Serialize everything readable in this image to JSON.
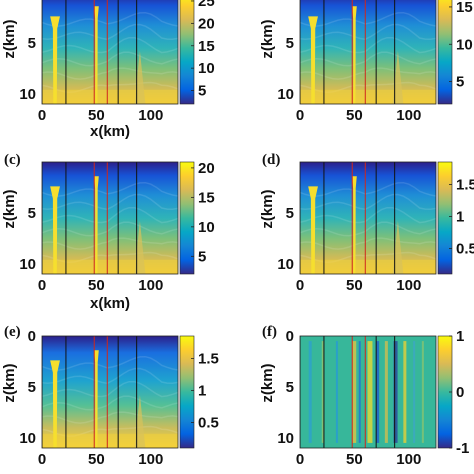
{
  "chart_data": [
    {
      "type": "heatmap",
      "panel_label": "",
      "colorbar_ticks": [
        "25",
        "20",
        "15",
        "10",
        "5"
      ],
      "colorbar_range": [
        2,
        27
      ],
      "colormap": "parula",
      "x_ticks": [
        "0",
        "50",
        "100"
      ],
      "y_ticks": [
        "5",
        "10"
      ],
      "xlabel": "x(km)",
      "ylabel": "z(km)",
      "xlim": [
        0,
        125
      ],
      "ylim": [
        11,
        0
      ]
    },
    {
      "type": "heatmap",
      "panel_label": "",
      "colorbar_ticks": [
        "15",
        "10",
        "5"
      ],
      "colorbar_range": [
        2,
        17
      ],
      "colormap": "parula",
      "x_ticks": [
        "0",
        "50",
        "100"
      ],
      "y_ticks": [
        "5",
        "10"
      ],
      "xlabel": "x(km)",
      "ylabel": "z(km)",
      "xlim": [
        0,
        125
      ],
      "ylim": [
        11,
        0
      ]
    },
    {
      "type": "heatmap",
      "panel_label": "(c)",
      "colorbar_ticks": [
        "20",
        "15",
        "10",
        "5"
      ],
      "colorbar_range": [
        2,
        21
      ],
      "colormap": "parula",
      "x_ticks": [
        "0",
        "50",
        "100"
      ],
      "y_ticks": [
        "5",
        "10"
      ],
      "xlabel": "x(km)",
      "ylabel": "z(km)",
      "xlim": [
        0,
        125
      ],
      "ylim": [
        11,
        0
      ]
    },
    {
      "type": "heatmap",
      "panel_label": "(d)",
      "colorbar_ticks": [
        "1.5",
        "1",
        "0.5"
      ],
      "colorbar_range": [
        0.1,
        1.85
      ],
      "colormap": "parula",
      "x_ticks": [
        "0",
        "50",
        "100"
      ],
      "y_ticks": [
        "5",
        "10"
      ],
      "xlabel": "x(km)",
      "ylabel": "z(km)",
      "xlim": [
        0,
        125
      ],
      "ylim": [
        11,
        0
      ]
    },
    {
      "type": "heatmap",
      "panel_label": "(e)",
      "colorbar_ticks": [
        "1.5",
        "1",
        "0.5"
      ],
      "colorbar_range": [
        0.1,
        1.85
      ],
      "colormap": "parula",
      "x_ticks": [
        "0",
        "50",
        "100"
      ],
      "y_ticks": [
        "0",
        "5",
        "10"
      ],
      "xlabel": "",
      "ylabel": "z(km)",
      "xlim": [
        0,
        125
      ],
      "ylim": [
        11,
        0
      ]
    },
    {
      "type": "heatmap",
      "panel_label": "(f)",
      "colorbar_ticks": [
        "1",
        "0",
        "-1"
      ],
      "colorbar_range": [
        -1,
        1
      ],
      "colormap": "parula",
      "x_ticks": [
        "0",
        "50",
        "100"
      ],
      "y_ticks": [
        "0",
        "5",
        "10"
      ],
      "xlabel": "",
      "ylabel": "z(km)",
      "xlim": [
        0,
        125
      ],
      "ylim": [
        11,
        0
      ]
    }
  ],
  "vertical_lines_km": {
    "black": [
      0,
      22,
      70,
      87
    ],
    "red": [
      48,
      60
    ]
  }
}
